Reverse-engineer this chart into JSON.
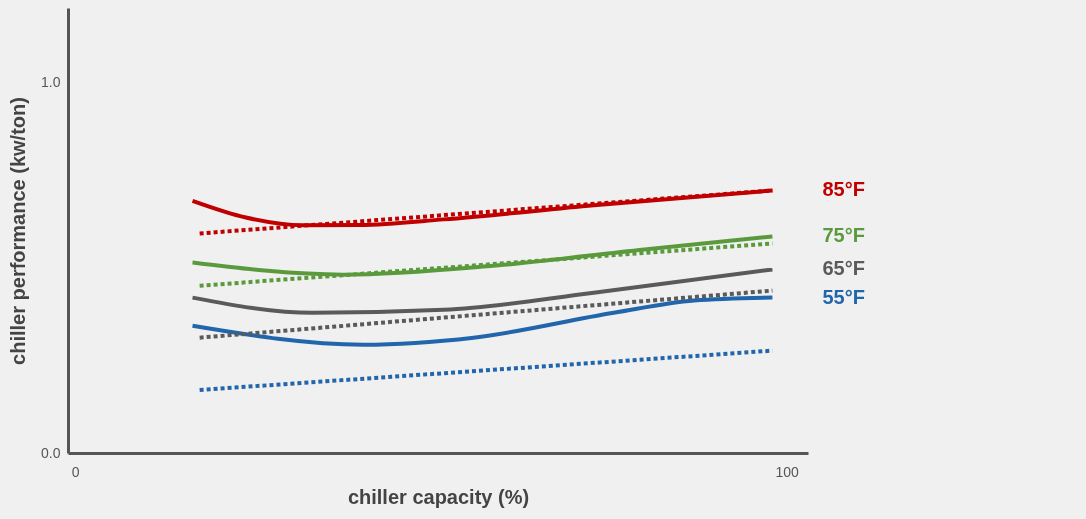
{
  "chart_data": {
    "type": "line",
    "xlabel": "chiller capacity (%)",
    "ylabel": "chiller performance (kw/ton)",
    "xlim": [
      -1,
      103
    ],
    "ylim": [
      0,
      1.2
    ],
    "xticks": [
      0,
      100
    ],
    "yticks": [
      {
        "value": 0,
        "label": "0.0"
      },
      {
        "value": 1,
        "label": "1.0"
      }
    ],
    "grid": false,
    "legend": false,
    "series": [
      {
        "name": "85°F",
        "color": "#c00000",
        "line_style": "solid",
        "x": [
          16.5,
          24,
          32,
          40,
          51.8,
          72.9,
          98
        ],
        "values": [
          0.68,
          0.635,
          0.614,
          0.615,
          0.63,
          0.668,
          0.708
        ]
      },
      {
        "color": "#c00000",
        "line_style": "dotted",
        "x": [
          17.5,
          98
        ],
        "values": [
          0.592,
          0.708
        ]
      },
      {
        "name": "75°F",
        "color": "#5a9a3c",
        "line_style": "solid",
        "x": [
          16.5,
          37.7,
          58.8,
          80,
          98
        ],
        "values": [
          0.514,
          0.481,
          0.505,
          0.549,
          0.584
        ]
      },
      {
        "color": "#5a9a3c",
        "line_style": "dotted",
        "x": [
          17.5,
          98
        ],
        "values": [
          0.451,
          0.565
        ]
      },
      {
        "name": "65°F",
        "color": "#5a5a5a",
        "line_style": "solid",
        "x": [
          16.5,
          33.4,
          51.8,
          72.9,
          98
        ],
        "values": [
          0.419,
          0.378,
          0.386,
          0.432,
          0.495
        ]
      },
      {
        "color": "#5a5a5a",
        "line_style": "dotted",
        "x": [
          17.5,
          98
        ],
        "values": [
          0.311,
          0.438
        ]
      },
      {
        "name": "55°F",
        "color": "#2166ac",
        "line_style": "solid",
        "x": [
          16.5,
          40.5,
          56,
          75.7,
          87,
          98
        ],
        "values": [
          0.343,
          0.292,
          0.311,
          0.378,
          0.411,
          0.419
        ]
      },
      {
        "color": "#2166ac",
        "line_style": "dotted",
        "x": [
          17.5,
          98
        ],
        "values": [
          0.17,
          0.276
        ]
      }
    ]
  }
}
